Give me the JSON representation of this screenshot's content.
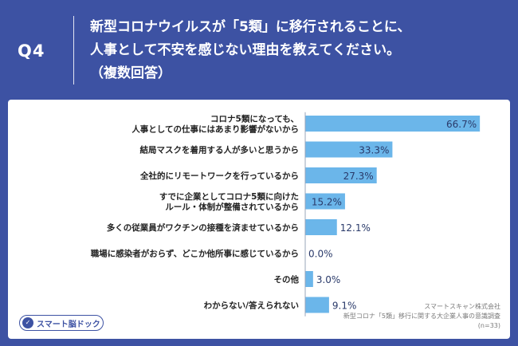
{
  "header": {
    "question_number": "Q4",
    "question_lines": [
      "新型コロナウイルスが「5類」に移行されることに、",
      "人事として不安を感じない理由を教えてください。",
      "（複数回答）"
    ]
  },
  "brand": {
    "logo_text": "スマート脳ドック",
    "logo_icon": "brain-check-icon"
  },
  "source": {
    "company": "スマートスキャン株式会社",
    "survey": "新型コロナ「5類」移行に関する大企業人事の意識調査",
    "sample": "(n=33)"
  },
  "colors": {
    "background": "#3d52a3",
    "bar": "#6bb6ea",
    "label_text": "#222222",
    "value_text": "#2a3a6a"
  },
  "chart_data": {
    "type": "bar",
    "orientation": "horizontal",
    "categories": [
      [
        "コロナ5類になっても、",
        "人事としての仕事にはあまり影響がないから"
      ],
      [
        "結局マスクを着用する人が多いと思うから"
      ],
      [
        "全社的にリモートワークを行っているから"
      ],
      [
        "すでに企業としてコロナ5類に向けた",
        "ルール・体制が整備されているから"
      ],
      [
        "多くの従業員がワクチンの接種を済ませているから"
      ],
      [
        "職場に感染者がおらず、どこか他所事に感じているから"
      ],
      [
        "その他"
      ],
      [
        "わからない/答えられない"
      ]
    ],
    "values": [
      66.7,
      33.3,
      27.3,
      15.2,
      12.1,
      0.0,
      3.0,
      9.1
    ],
    "value_labels": [
      "66.7%",
      "33.3%",
      "27.3%",
      "15.2%",
      "12.1%",
      "0.0%",
      "3.0%",
      "9.1%"
    ],
    "xlim": [
      0,
      70
    ],
    "grid": false,
    "legend": "none"
  }
}
